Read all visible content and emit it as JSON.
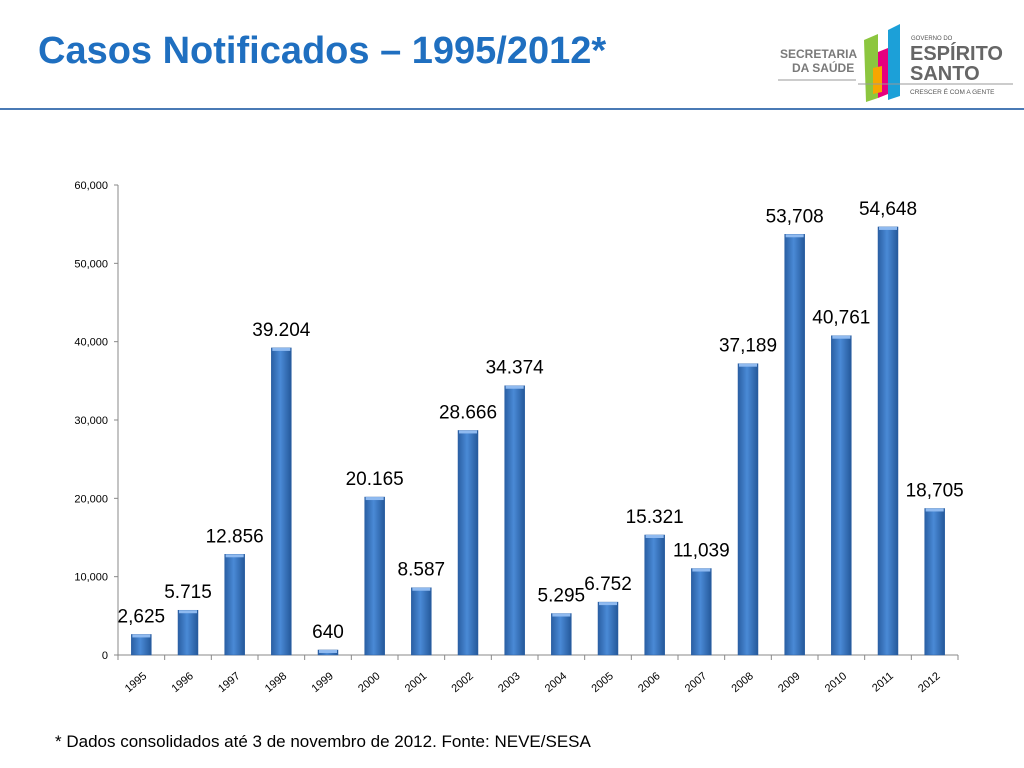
{
  "title": "Casos Notificados – 1995/2012*",
  "footnote": "* Dados consolidados até 3 de novembro de 2012. Fonte: NEVE/SESA",
  "logo": {
    "left_text": [
      "SECRETARIA",
      "DA SAÚDE"
    ],
    "govt_small": "GOVERNO DO",
    "state": [
      "ESPÍRITO",
      "SANTO"
    ],
    "slogan": "CRESCER É COM A GENTE"
  },
  "colors": {
    "title": "#1f6fc0",
    "bar": "#3b78c4",
    "rule": "#4a7ab5"
  },
  "chart_data": {
    "type": "bar",
    "title": "Casos Notificados – 1995/2012*",
    "xlabel": "",
    "ylabel": "",
    "ylim": [
      0,
      60000
    ],
    "yticks": [
      "0",
      "10,000",
      "20,000",
      "30,000",
      "40,000",
      "50,000",
      "60,000"
    ],
    "grid": false,
    "categories": [
      "1995",
      "1996",
      "1997",
      "1998",
      "1999",
      "2000",
      "2001",
      "2002",
      "2003",
      "2004",
      "2005",
      "2006",
      "2007",
      "2008",
      "2009",
      "2010",
      "2011",
      "2012"
    ],
    "values": [
      2625,
      5715,
      12856,
      39204,
      640,
      20165,
      8587,
      28666,
      34374,
      5295,
      6752,
      15321,
      11039,
      37189,
      53708,
      40761,
      54648,
      18705
    ],
    "data_labels": [
      "2,625",
      "5.715",
      "12.856",
      "39.204",
      "640",
      "20.165",
      "8.587",
      "28.666",
      "34.374",
      "5.295",
      "6.752",
      "15.321",
      "11,039",
      "37,189",
      "53,708",
      "40,761",
      "54,648",
      "18,705"
    ]
  }
}
